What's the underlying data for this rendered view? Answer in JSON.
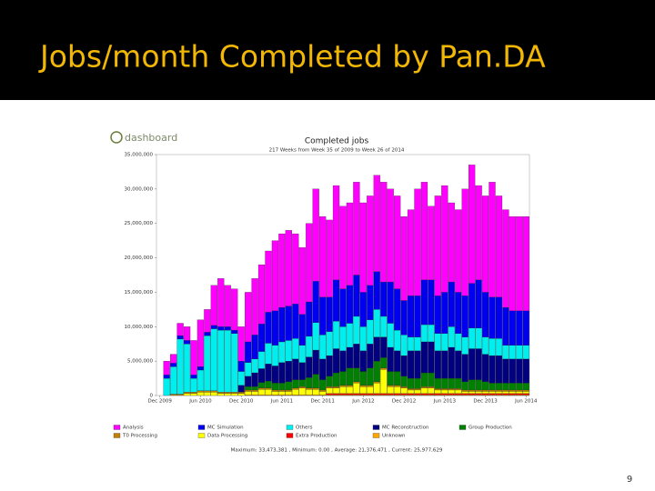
{
  "slide": {
    "title": "Jobs/month Completed by Pan.DA",
    "page_number": 9,
    "logo": "dashboard"
  },
  "chart_data": {
    "type": "bar",
    "stacked": true,
    "grid": false,
    "title": "Completed jobs",
    "subtitle": "217 Weeks from Week 35 of 2009 to Week 26 of 2014",
    "footer": "Maximum: 33,473,381 , Minimum: 0.00 , Average: 21,376,471 , Current: 25,977,629",
    "ylim": [
      0,
      35000000
    ],
    "yticks": [
      0,
      {
        "value": 5000000,
        "label": "5,000,000"
      },
      {
        "value": 10000000,
        "label": "10,000,000"
      },
      {
        "value": 15000000,
        "label": "15,000,000"
      },
      {
        "value": 20000000,
        "label": "20,000,000"
      },
      {
        "value": 25000000,
        "label": "25,000,000"
      },
      {
        "value": 30000000,
        "label": "30,000,000"
      },
      {
        "value": 35000000,
        "label": "35,000,000"
      }
    ],
    "categories": [
      "Dec 2009",
      null,
      null,
      null,
      null,
      null,
      "Jun 2010",
      null,
      null,
      null,
      null,
      null,
      "Dec 2010",
      null,
      null,
      null,
      null,
      null,
      "Jun 2011",
      null,
      null,
      null,
      null,
      null,
      "Dec 2011",
      null,
      null,
      null,
      null,
      null,
      "Jun 2012",
      null,
      null,
      null,
      null,
      null,
      "Dec 2012",
      null,
      null,
      null,
      null,
      null,
      "Jun 2013",
      null,
      null,
      null,
      null,
      null,
      "Dec 2013",
      null,
      null,
      null,
      null,
      null,
      "Jun 2014"
    ],
    "series": [
      {
        "name": "Analysis",
        "color": "#ff00ff",
        "values": [
          0,
          2000000,
          1300000,
          1800000,
          2000000,
          5000000,
          6800000,
          3300000,
          5800000,
          7000000,
          6000000,
          6000000,
          5000000,
          7200000,
          8200000,
          8600000,
          8900000,
          10200000,
          10700000,
          11000000,
          10200000,
          9700000,
          11400000,
          13400000,
          11700000,
          11200000,
          13700000,
          12000000,
          12000000,
          13500000,
          13000000,
          13000000,
          14000000,
          14500000,
          13500000,
          13500000,
          12200000,
          12500000,
          15500000,
          14200000,
          10700000,
          14500000,
          15500000,
          11500000,
          12000000,
          15500000,
          17200000,
          13700000,
          14000000,
          16700000,
          14700000,
          14200000,
          13700000,
          13700000,
          13700000
        ]
      },
      {
        "name": "MC Simulation",
        "color": "#0000ee",
        "values": [
          0,
          500000,
          500000,
          500000,
          500000,
          500000,
          500000,
          500000,
          500000,
          500000,
          500000,
          500000,
          1500000,
          3000000,
          3500000,
          4000000,
          4500000,
          5000000,
          5000000,
          5000000,
          5000000,
          4500000,
          5000000,
          6000000,
          5500000,
          5000000,
          6000000,
          5500000,
          5500000,
          6000000,
          5000000,
          5000000,
          5500000,
          5000000,
          6000000,
          6000000,
          5000000,
          6000000,
          6000000,
          6500000,
          6500000,
          5500000,
          6000000,
          6500000,
          6000000,
          6000000,
          6500000,
          7000000,
          6500000,
          6000000,
          6000000,
          5500000,
          5000000,
          5000000,
          5000000
        ]
      },
      {
        "name": "Others",
        "color": "#00eeee",
        "values": [
          0,
          2500000,
          4000000,
          8000000,
          7000000,
          2000000,
          3000000,
          8000000,
          9000000,
          9000000,
          9000000,
          8500000,
          2000000,
          2000000,
          2000000,
          2500000,
          3000000,
          3000000,
          3000000,
          3000000,
          3000000,
          2500000,
          3000000,
          4000000,
          3500000,
          3500000,
          4000000,
          3500000,
          3500000,
          4000000,
          3500000,
          3500000,
          4000000,
          3000000,
          3500000,
          3000000,
          3000000,
          2000000,
          2000000,
          2500000,
          2500000,
          2500000,
          2500000,
          3000000,
          2500000,
          2500000,
          3000000,
          3000000,
          2500000,
          2500000,
          2500000,
          2000000,
          2000000,
          2000000,
          2000000
        ]
      },
      {
        "name": "MC Reconstruction",
        "color": "#000080",
        "values": [
          0,
          0,
          0,
          0,
          0,
          0,
          0,
          0,
          0,
          0,
          0,
          0,
          1000000,
          1500000,
          2000000,
          2000000,
          2500000,
          2500000,
          3000000,
          3000000,
          3000000,
          2500000,
          3000000,
          3500000,
          3000000,
          3000000,
          3500000,
          3000000,
          3000000,
          3500000,
          3000000,
          3500000,
          3500000,
          3000000,
          3500000,
          3000000,
          3000000,
          4000000,
          4000000,
          4500000,
          4500000,
          4000000,
          4000000,
          4500000,
          4000000,
          4000000,
          4500000,
          4500000,
          4000000,
          4000000,
          4000000,
          3500000,
          3500000,
          3500000,
          3500000
        ]
      },
      {
        "name": "Group Production",
        "color": "#008000",
        "values": [
          0,
          0,
          0,
          0,
          0,
          0,
          0,
          0,
          0,
          0,
          0,
          0,
          0,
          500000,
          500000,
          800000,
          1000000,
          1000000,
          1000000,
          1200000,
          1200000,
          1000000,
          1500000,
          2000000,
          1500000,
          1500000,
          2000000,
          2000000,
          2500000,
          2000000,
          2000000,
          2500000,
          3000000,
          1500000,
          2000000,
          2000000,
          1500000,
          1500000,
          1500000,
          2000000,
          2000000,
          1500000,
          1500000,
          1500000,
          1500000,
          1200000,
          1500000,
          1500000,
          1200000,
          1000000,
          1000000,
          1000000,
          1000000,
          1000000,
          1000000
        ]
      },
      {
        "name": "T0 Processing",
        "color": "#c08000",
        "values": [
          0,
          0,
          200000,
          200000,
          200000,
          200000,
          200000,
          200000,
          200000,
          200000,
          200000,
          200000,
          200000,
          200000,
          200000,
          200000,
          200000,
          200000,
          200000,
          200000,
          200000,
          200000,
          200000,
          200000,
          200000,
          200000,
          200000,
          200000,
          200000,
          200000,
          200000,
          200000,
          200000,
          200000,
          200000,
          200000,
          200000,
          200000,
          200000,
          200000,
          200000,
          200000,
          200000,
          200000,
          200000,
          200000,
          200000,
          200000,
          200000,
          200000,
          200000,
          200000,
          200000,
          200000,
          200000
        ]
      },
      {
        "name": "Data Processing",
        "color": "#ffff00",
        "values": [
          0,
          0,
          0,
          0,
          300000,
          300000,
          500000,
          500000,
          500000,
          300000,
          300000,
          300000,
          300000,
          500000,
          500000,
          800000,
          800000,
          500000,
          500000,
          500000,
          800000,
          1000000,
          800000,
          800000,
          500000,
          800000,
          800000,
          1000000,
          1000000,
          1500000,
          1000000,
          1000000,
          1500000,
          3500000,
          1000000,
          1000000,
          800000,
          500000,
          500000,
          800000,
          800000,
          500000,
          500000,
          500000,
          500000,
          300000,
          300000,
          300000,
          300000,
          300000,
          300000,
          300000,
          300000,
          300000,
          300000
        ]
      },
      {
        "name": "Extra Production",
        "color": "#ff0000",
        "values": [
          0,
          0,
          0,
          0,
          0,
          0,
          0,
          0,
          0,
          0,
          0,
          0,
          0,
          0,
          0,
          0,
          0,
          0,
          0,
          0,
          0,
          0,
          0,
          0,
          0,
          200000,
          200000,
          200000,
          200000,
          200000,
          200000,
          200000,
          200000,
          200000,
          200000,
          200000,
          200000,
          200000,
          200000,
          200000,
          200000,
          200000,
          200000,
          200000,
          200000,
          200000,
          200000,
          200000,
          200000,
          200000,
          200000,
          200000,
          200000,
          200000,
          200000
        ]
      },
      {
        "name": "Unknown",
        "color": "#ffa500",
        "values": [
          0,
          0,
          0,
          0,
          0,
          0,
          0,
          0,
          0,
          0,
          0,
          0,
          0,
          100000,
          100000,
          100000,
          100000,
          100000,
          100000,
          100000,
          100000,
          100000,
          100000,
          100000,
          100000,
          100000,
          100000,
          100000,
          100000,
          100000,
          100000,
          100000,
          100000,
          100000,
          100000,
          100000,
          100000,
          100000,
          100000,
          100000,
          100000,
          100000,
          100000,
          100000,
          100000,
          100000,
          100000,
          100000,
          100000,
          100000,
          100000,
          100000,
          100000,
          100000,
          100000
        ]
      }
    ]
  }
}
